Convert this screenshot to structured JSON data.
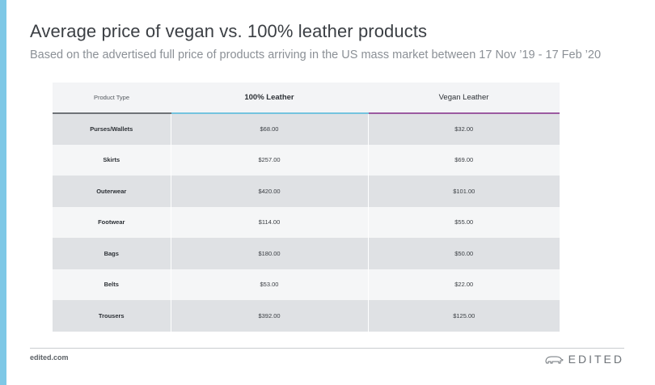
{
  "title": "Average price of vegan vs. 100% leather products",
  "subtitle": "Based on the advertised full price of products arriving in the US mass market between 17 Nov ’19 - 17 Feb ’20",
  "colors": {
    "accent": "#7ec8e6",
    "leather": "#74c3de",
    "vegan": "#9b5aa0"
  },
  "chart_data": {
    "type": "table",
    "title": "Average price of vegan vs. 100% leather products",
    "subtitle": "Based on the advertised full price of products arriving in the US mass market between 17 Nov ’19 - 17 Feb ’20",
    "columns": [
      "Product Type",
      "100% Leather",
      "Vegan Leather"
    ],
    "rows": [
      {
        "type": "Purses/Wallets",
        "leather": "$68.00",
        "vegan": "$32.00"
      },
      {
        "type": "Skirts",
        "leather": "$257.00",
        "vegan": "$69.00"
      },
      {
        "type": "Outerwear",
        "leather": "$420.00",
        "vegan": "$101.00"
      },
      {
        "type": "Footwear",
        "leather": "$114.00",
        "vegan": "$55.00"
      },
      {
        "type": "Bags",
        "leather": "$180.00",
        "vegan": "$50.00"
      },
      {
        "type": "Belts",
        "leather": "$53.00",
        "vegan": "$22.00"
      },
      {
        "type": "Trousers",
        "leather": "$392.00",
        "vegan": "$125.00"
      }
    ]
  },
  "footer": {
    "url": "edited.com",
    "brand": "EDITED",
    "brand_icon": "polar-bear-icon"
  }
}
